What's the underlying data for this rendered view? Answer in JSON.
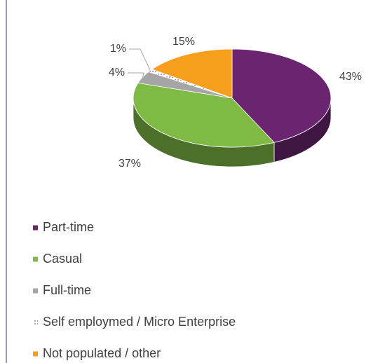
{
  "chart_data": {
    "type": "pie3d",
    "categories": [
      "Part-time",
      "Casual",
      "Full-time",
      "Self employmed / Micro Enterprise",
      "Not populated / other"
    ],
    "values": [
      43,
      37,
      4,
      1,
      15
    ],
    "value_labels": [
      "43%",
      "37%",
      "4%",
      "1%",
      "15%"
    ],
    "colors": [
      "#6a2470",
      "#7fbb44",
      "#a5a5a5",
      "#7b4fa0",
      "#f59f1c"
    ],
    "legend": "bottom"
  }
}
